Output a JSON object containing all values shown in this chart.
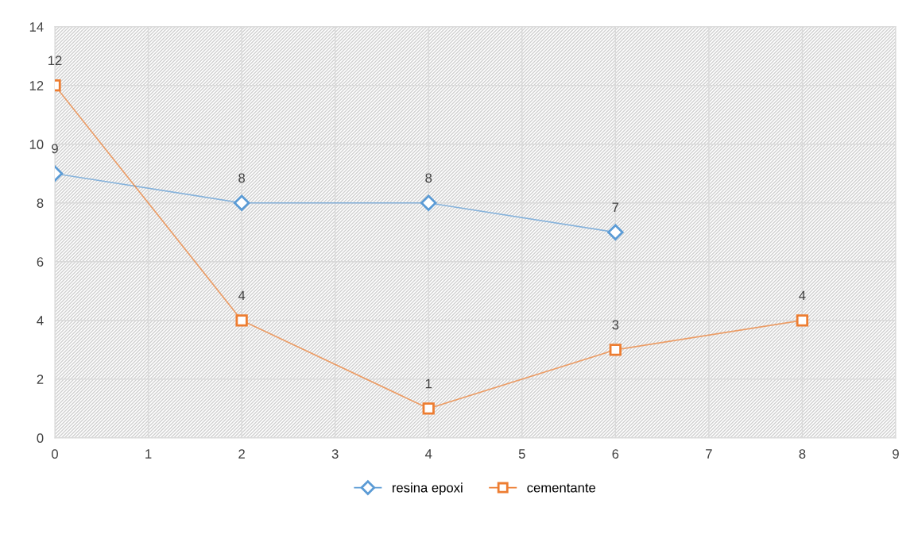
{
  "chart_data": {
    "type": "line",
    "xlim": [
      0,
      9
    ],
    "xticks": [
      0,
      1,
      2,
      3,
      4,
      5,
      6,
      7,
      8,
      9
    ],
    "ylim": [
      0,
      14
    ],
    "yticks": [
      0,
      2,
      4,
      6,
      8,
      10,
      12,
      14
    ],
    "grid": true,
    "legend": "bottom",
    "data_labels": true,
    "series": [
      {
        "name": "resina epoxi",
        "color": "#5b9bd5",
        "marker": "diamond",
        "x": [
          0,
          2,
          4,
          6
        ],
        "values": [
          9,
          8,
          8,
          7
        ]
      },
      {
        "name": "cementante",
        "color": "#ed7d31",
        "marker": "square",
        "x": [
          0,
          2,
          4,
          6,
          8
        ],
        "values": [
          12,
          4,
          1,
          3,
          4
        ]
      }
    ]
  }
}
